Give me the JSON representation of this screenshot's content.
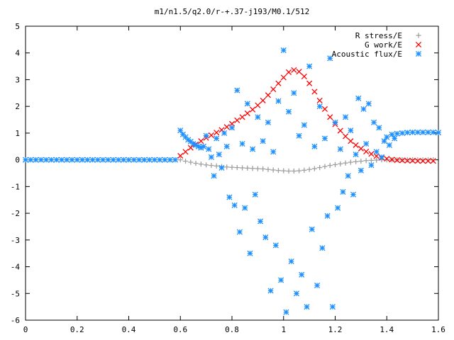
{
  "chart_data": {
    "type": "scatter",
    "title": "m1/n1.5/q2.0/r-+.37-j193/M0.1/512",
    "xlabel": "",
    "ylabel": "",
    "xlim": [
      0,
      1.6
    ],
    "ylim": [
      -6,
      5
    ],
    "x_ticks": [
      "0",
      "0.2",
      "0.4",
      "0.6",
      "0.8",
      "1",
      "1.2",
      "1.4",
      "1.6"
    ],
    "y_ticks": [
      "5",
      "4",
      "3",
      "2",
      "1",
      "0",
      "-1",
      "-2",
      "-3",
      "-4",
      "-5",
      "-6"
    ],
    "grid": false,
    "legend": "top-right",
    "series": [
      {
        "name": "R stress/E",
        "marker": "plus",
        "color": "#a0a0a0",
        "points": [
          [
            0.6,
            0.0
          ],
          [
            0.62,
            -0.05
          ],
          [
            0.64,
            -0.09
          ],
          [
            0.66,
            -0.13
          ],
          [
            0.68,
            -0.16
          ],
          [
            0.7,
            -0.19
          ],
          [
            0.72,
            -0.21
          ],
          [
            0.74,
            -0.23
          ],
          [
            0.76,
            -0.25
          ],
          [
            0.78,
            -0.27
          ],
          [
            0.8,
            -0.28
          ],
          [
            0.82,
            -0.29
          ],
          [
            0.84,
            -0.3
          ],
          [
            0.86,
            -0.31
          ],
          [
            0.88,
            -0.32
          ],
          [
            0.9,
            -0.33
          ],
          [
            0.92,
            -0.34
          ],
          [
            0.94,
            -0.36
          ],
          [
            0.96,
            -0.38
          ],
          [
            0.98,
            -0.4
          ],
          [
            1.0,
            -0.41
          ],
          [
            1.02,
            -0.42
          ],
          [
            1.04,
            -0.42
          ],
          [
            1.06,
            -0.41
          ],
          [
            1.08,
            -0.39
          ],
          [
            1.1,
            -0.36
          ],
          [
            1.12,
            -0.33
          ],
          [
            1.14,
            -0.29
          ],
          [
            1.16,
            -0.25
          ],
          [
            1.18,
            -0.21
          ],
          [
            1.2,
            -0.18
          ],
          [
            1.22,
            -0.15
          ],
          [
            1.24,
            -0.12
          ],
          [
            1.26,
            -0.09
          ],
          [
            1.28,
            -0.07
          ],
          [
            1.3,
            -0.05
          ],
          [
            1.32,
            -0.03
          ],
          [
            1.34,
            -0.02
          ],
          [
            1.36,
            -0.01
          ],
          [
            1.38,
            0.0
          ],
          [
            1.4,
            0.0
          ],
          [
            1.42,
            0.0
          ],
          [
            1.44,
            0.0
          ],
          [
            1.46,
            0.0
          ],
          [
            1.48,
            0.0
          ],
          [
            1.5,
            0.0
          ],
          [
            1.52,
            0.0
          ],
          [
            1.54,
            0.0
          ],
          [
            1.56,
            0.0
          ],
          [
            1.58,
            0.0
          ]
        ]
      },
      {
        "name": "G work/E",
        "marker": "cross",
        "color": "#ff0000",
        "points": [
          [
            0.6,
            0.15
          ],
          [
            0.62,
            0.3
          ],
          [
            0.64,
            0.45
          ],
          [
            0.66,
            0.58
          ],
          [
            0.68,
            0.7
          ],
          [
            0.7,
            0.82
          ],
          [
            0.72,
            0.92
          ],
          [
            0.74,
            1.02
          ],
          [
            0.76,
            1.12
          ],
          [
            0.78,
            1.23
          ],
          [
            0.8,
            1.35
          ],
          [
            0.82,
            1.48
          ],
          [
            0.84,
            1.6
          ],
          [
            0.86,
            1.74
          ],
          [
            0.88,
            1.88
          ],
          [
            0.9,
            2.04
          ],
          [
            0.92,
            2.22
          ],
          [
            0.94,
            2.42
          ],
          [
            0.96,
            2.64
          ],
          [
            0.98,
            2.86
          ],
          [
            1.0,
            3.08
          ],
          [
            1.02,
            3.28
          ],
          [
            1.04,
            3.36
          ],
          [
            1.06,
            3.3
          ],
          [
            1.08,
            3.12
          ],
          [
            1.1,
            2.86
          ],
          [
            1.12,
            2.55
          ],
          [
            1.14,
            2.22
          ],
          [
            1.16,
            1.9
          ],
          [
            1.18,
            1.6
          ],
          [
            1.2,
            1.33
          ],
          [
            1.22,
            1.09
          ],
          [
            1.24,
            0.88
          ],
          [
            1.26,
            0.7
          ],
          [
            1.28,
            0.55
          ],
          [
            1.3,
            0.42
          ],
          [
            1.32,
            0.31
          ],
          [
            1.34,
            0.22
          ],
          [
            1.36,
            0.14
          ],
          [
            1.38,
            0.08
          ],
          [
            1.4,
            0.04
          ],
          [
            1.42,
            0.01
          ],
          [
            1.44,
            -0.01
          ],
          [
            1.46,
            -0.02
          ],
          [
            1.48,
            -0.03
          ],
          [
            1.5,
            -0.03
          ],
          [
            1.52,
            -0.04
          ],
          [
            1.54,
            -0.04
          ],
          [
            1.56,
            -0.04
          ],
          [
            1.58,
            -0.04
          ]
        ]
      },
      {
        "name": "Acoustic flux/E",
        "marker": "star",
        "color": "#1e90ff",
        "points": [
          [
            0.0,
            0.0
          ],
          [
            0.02,
            0.0
          ],
          [
            0.04,
            0.0
          ],
          [
            0.06,
            0.0
          ],
          [
            0.08,
            0.0
          ],
          [
            0.1,
            0.0
          ],
          [
            0.12,
            0.0
          ],
          [
            0.14,
            0.0
          ],
          [
            0.16,
            0.0
          ],
          [
            0.18,
            0.0
          ],
          [
            0.2,
            0.0
          ],
          [
            0.22,
            0.0
          ],
          [
            0.24,
            0.0
          ],
          [
            0.26,
            0.0
          ],
          [
            0.28,
            0.0
          ],
          [
            0.3,
            0.0
          ],
          [
            0.32,
            0.0
          ],
          [
            0.34,
            0.0
          ],
          [
            0.36,
            0.0
          ],
          [
            0.38,
            0.0
          ],
          [
            0.4,
            0.0
          ],
          [
            0.42,
            0.0
          ],
          [
            0.44,
            0.0
          ],
          [
            0.46,
            0.0
          ],
          [
            0.48,
            0.0
          ],
          [
            0.5,
            0.0
          ],
          [
            0.52,
            0.0
          ],
          [
            0.54,
            0.0
          ],
          [
            0.56,
            0.0
          ],
          [
            0.58,
            0.0
          ],
          [
            0.6,
            1.1
          ],
          [
            0.61,
            0.95
          ],
          [
            0.62,
            0.85
          ],
          [
            0.63,
            0.75
          ],
          [
            0.64,
            0.68
          ],
          [
            0.65,
            0.6
          ],
          [
            0.66,
            0.55
          ],
          [
            0.67,
            0.5
          ],
          [
            0.68,
            0.45
          ],
          [
            0.69,
            0.5
          ],
          [
            0.7,
            0.9
          ],
          [
            0.71,
            0.4
          ],
          [
            0.72,
            0.1
          ],
          [
            0.73,
            -0.6
          ],
          [
            0.74,
            0.8
          ],
          [
            0.75,
            0.2
          ],
          [
            0.76,
            -0.3
          ],
          [
            0.77,
            1.0
          ],
          [
            0.78,
            0.5
          ],
          [
            0.79,
            -1.4
          ],
          [
            0.8,
            1.2
          ],
          [
            0.81,
            -1.7
          ],
          [
            0.82,
            2.6
          ],
          [
            0.83,
            -2.7
          ],
          [
            0.84,
            0.6
          ],
          [
            0.85,
            -1.8
          ],
          [
            0.86,
            2.1
          ],
          [
            0.87,
            -3.5
          ],
          [
            0.88,
            0.4
          ],
          [
            0.89,
            -1.3
          ],
          [
            0.9,
            1.6
          ],
          [
            0.91,
            -2.3
          ],
          [
            0.92,
            0.7
          ],
          [
            0.93,
            -2.9
          ],
          [
            0.94,
            1.4
          ],
          [
            0.95,
            -4.9
          ],
          [
            0.96,
            0.3
          ],
          [
            0.97,
            -3.2
          ],
          [
            0.98,
            2.2
          ],
          [
            0.99,
            -4.5
          ],
          [
            1.0,
            4.1
          ],
          [
            1.01,
            -5.7
          ],
          [
            1.02,
            1.8
          ],
          [
            1.03,
            -3.8
          ],
          [
            1.04,
            2.5
          ],
          [
            1.05,
            -5.0
          ],
          [
            1.06,
            0.9
          ],
          [
            1.07,
            -4.3
          ],
          [
            1.08,
            1.3
          ],
          [
            1.09,
            -5.5
          ],
          [
            1.1,
            3.5
          ],
          [
            1.11,
            -2.6
          ],
          [
            1.12,
            0.5
          ],
          [
            1.13,
            -4.7
          ],
          [
            1.14,
            2.0
          ],
          [
            1.15,
            -3.3
          ],
          [
            1.16,
            0.8
          ],
          [
            1.17,
            -2.1
          ],
          [
            1.18,
            3.8
          ],
          [
            1.19,
            -5.5
          ],
          [
            1.2,
            1.4
          ],
          [
            1.21,
            -1.8
          ],
          [
            1.22,
            0.4
          ],
          [
            1.23,
            -1.2
          ],
          [
            1.24,
            1.6
          ],
          [
            1.25,
            -0.6
          ],
          [
            1.26,
            1.1
          ],
          [
            1.27,
            -1.3
          ],
          [
            1.28,
            0.2
          ],
          [
            1.29,
            2.3
          ],
          [
            1.3,
            -0.4
          ],
          [
            1.31,
            1.9
          ],
          [
            1.32,
            0.6
          ],
          [
            1.33,
            2.1
          ],
          [
            1.34,
            -0.2
          ],
          [
            1.35,
            1.4
          ],
          [
            1.36,
            0.3
          ],
          [
            1.37,
            1.2
          ],
          [
            1.38,
            0.1
          ],
          [
            1.39,
            0.7
          ],
          [
            1.4,
            0.85
          ],
          [
            1.41,
            0.55
          ],
          [
            1.42,
            0.95
          ],
          [
            1.43,
            0.8
          ],
          [
            1.44,
            0.98
          ],
          [
            1.46,
            1.0
          ],
          [
            1.48,
            1.02
          ],
          [
            1.5,
            1.03
          ],
          [
            1.52,
            1.03
          ],
          [
            1.54,
            1.03
          ],
          [
            1.56,
            1.03
          ],
          [
            1.58,
            1.03
          ],
          [
            1.6,
            1.02
          ]
        ]
      }
    ]
  }
}
